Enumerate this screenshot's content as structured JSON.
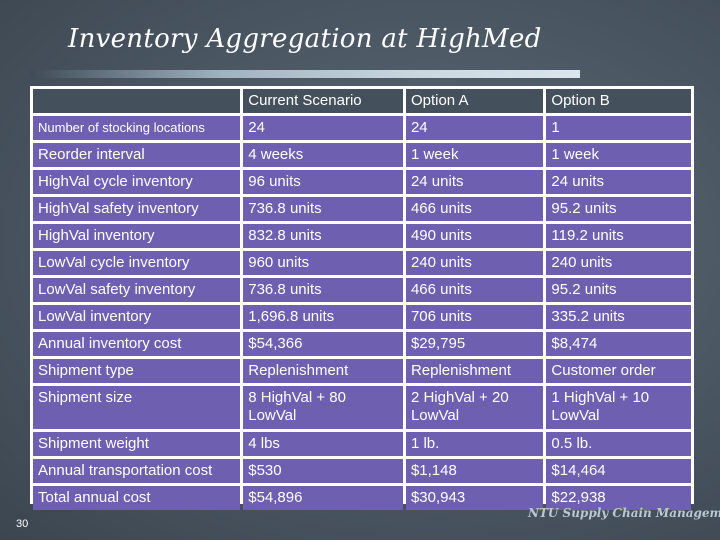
{
  "slide": {
    "title": "Inventory Aggregation at HighMed",
    "page_number": "30",
    "brand": "NTU Supply Chain Management"
  },
  "table": {
    "headers": [
      "",
      "Current Scenario",
      "Option A",
      "Option B"
    ],
    "rows": [
      [
        "Number of stocking locations",
        "24",
        "24",
        "1"
      ],
      [
        "Reorder interval",
        "4 weeks",
        "1 week",
        "1 week"
      ],
      [
        "HighVal cycle inventory",
        "96 units",
        "24 units",
        "24 units"
      ],
      [
        "HighVal safety inventory",
        "736.8 units",
        "466 units",
        "95.2 units"
      ],
      [
        "HighVal inventory",
        "832.8 units",
        "490 units",
        "119.2 units"
      ],
      [
        "LowVal cycle inventory",
        "960 units",
        "240 units",
        "240 units"
      ],
      [
        "LowVal safety inventory",
        "736.8 units",
        "466 units",
        "95.2 units"
      ],
      [
        "LowVal inventory",
        "1,696.8 units",
        "706 units",
        "335.2 units"
      ],
      [
        "Annual inventory cost",
        "$54,366",
        "$29,795",
        "$8,474"
      ],
      [
        "Shipment type",
        "Replenishment",
        "Replenishment",
        "Customer order"
      ],
      [
        "Shipment size",
        "8 HighVal + 80 LowVal",
        "2 HighVal + 20 LowVal",
        "1 HighVal + 10 LowVal"
      ],
      [
        "Shipment weight",
        "4 lbs",
        "1 lb.",
        "0.5 lb."
      ],
      [
        "Annual transportation cost",
        "$530",
        "$1,148",
        "$14,464"
      ],
      [
        "Total annual cost",
        "$54,896",
        "$30,943",
        "$22,938"
      ]
    ]
  }
}
